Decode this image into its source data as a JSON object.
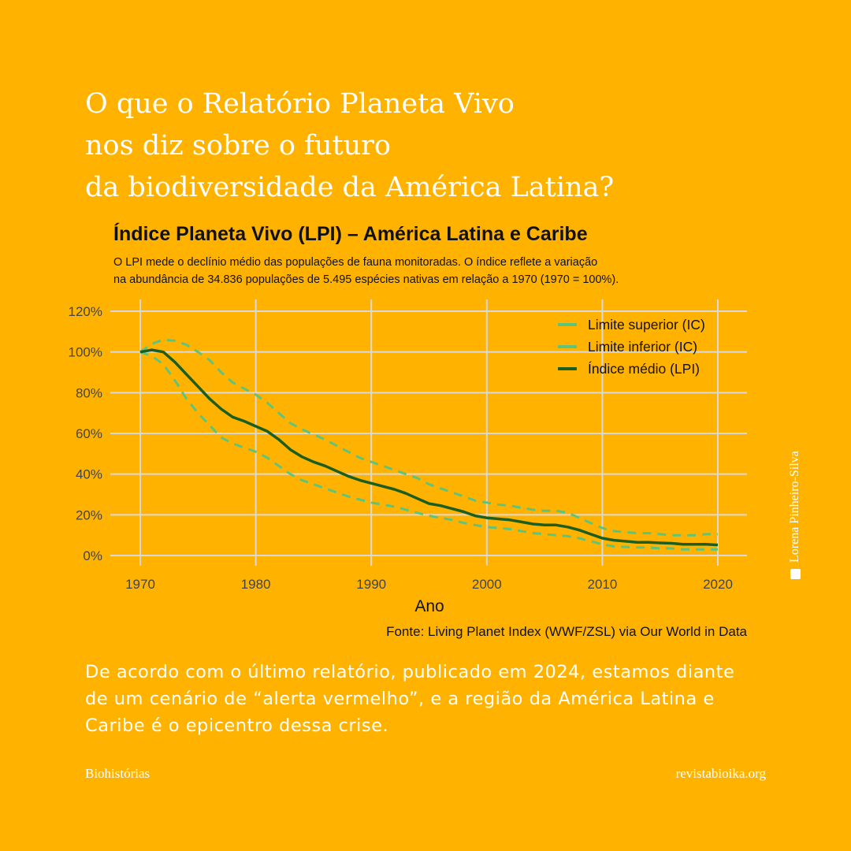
{
  "headline": [
    "O que o Relatório Planeta Vivo",
    "nos diz sobre o futuro",
    "da biodiversidade da América Latina?"
  ],
  "colors": {
    "background": "#FFB300",
    "upper": "#5FC47A",
    "lower": "#5FC47A",
    "mean": "#1B5E20",
    "grid": "#D9D9D9"
  },
  "chart_data": {
    "type": "line",
    "title": "Índice Planeta Vivo (LPI) – América Latina e Caribe",
    "subtitle": [
      "O LPI mede o declínio médio das populações de fauna monitoradas. O índice reflete a variação",
      "na abundância de 34.836 populações de 5.495 espécies nativas em relação a 1970 (1970 = 100%)."
    ],
    "xlabel": "Ano",
    "ylabel": "",
    "xlim": [
      1970,
      2020
    ],
    "ylim": [
      0,
      120
    ],
    "xticks": [
      "1970",
      "1980",
      "1990",
      "2000",
      "2010",
      "2020"
    ],
    "yticks": [
      "0%",
      "20%",
      "40%",
      "60%",
      "80%",
      "100%",
      "120%"
    ],
    "grid": true,
    "legend_position": "top-right",
    "source": "Fonte: Living Planet Index (WWF/ZSL) via Our World in Data",
    "x_start": 1970,
    "series": [
      {
        "name": "Limite superior (IC)",
        "style": "dashed",
        "values": [
          100,
          104,
          106,
          105.5,
          103.5,
          100,
          96,
          90,
          85,
          82,
          79,
          75,
          70,
          65,
          62,
          59.5,
          57,
          54,
          51,
          48,
          46,
          44,
          42,
          40,
          38,
          35,
          33,
          31,
          29,
          27,
          26,
          25,
          24.5,
          23.5,
          22.5,
          22,
          22,
          21,
          18.5,
          16,
          13.5,
          12,
          11.5,
          11,
          11,
          10.5,
          10,
          10,
          10,
          10.5,
          10.5
        ]
      },
      {
        "name": "Limite inferior (IC)",
        "style": "dashed",
        "values": [
          100,
          98,
          94,
          86,
          77,
          70,
          64,
          58,
          55,
          53,
          51,
          48,
          44,
          40,
          37,
          35,
          33,
          31,
          29,
          27.5,
          26,
          25,
          24,
          22.5,
          21,
          19.5,
          18.5,
          17.5,
          16,
          15,
          14,
          13.5,
          13,
          12,
          11,
          10.5,
          10,
          9.5,
          8.5,
          7,
          5.5,
          4.5,
          4.2,
          4,
          4,
          3.5,
          3.5,
          3,
          3,
          3,
          3
        ]
      },
      {
        "name": "Índice médio (LPI)",
        "style": "solid",
        "values": [
          100,
          101,
          100,
          95,
          89,
          83,
          77,
          72,
          68,
          66,
          63.5,
          61,
          57,
          52,
          48.5,
          46,
          44,
          41.5,
          39,
          37,
          35.5,
          34,
          32.5,
          30.5,
          28,
          25.5,
          24.5,
          23,
          21.5,
          19.5,
          18.5,
          18,
          17.5,
          16.5,
          15.5,
          15,
          15,
          14,
          12.5,
          10.5,
          8.5,
          7.5,
          7,
          6.5,
          6.5,
          6.2,
          6,
          5.5,
          5.5,
          5.5,
          5.2
        ]
      }
    ]
  },
  "body_text": "De acordo com o último relatório, publicado em 2024, estamos diante de um cenário de “alerta vermelho”, e a região da América Latina e Caribe é o epicentro dessa crise.",
  "footer": {
    "left": "Biohistórias",
    "right": "revistabioika.org"
  },
  "credit": {
    "text": "Lorena Pinheiro-Silva",
    "icon": "image-icon"
  }
}
